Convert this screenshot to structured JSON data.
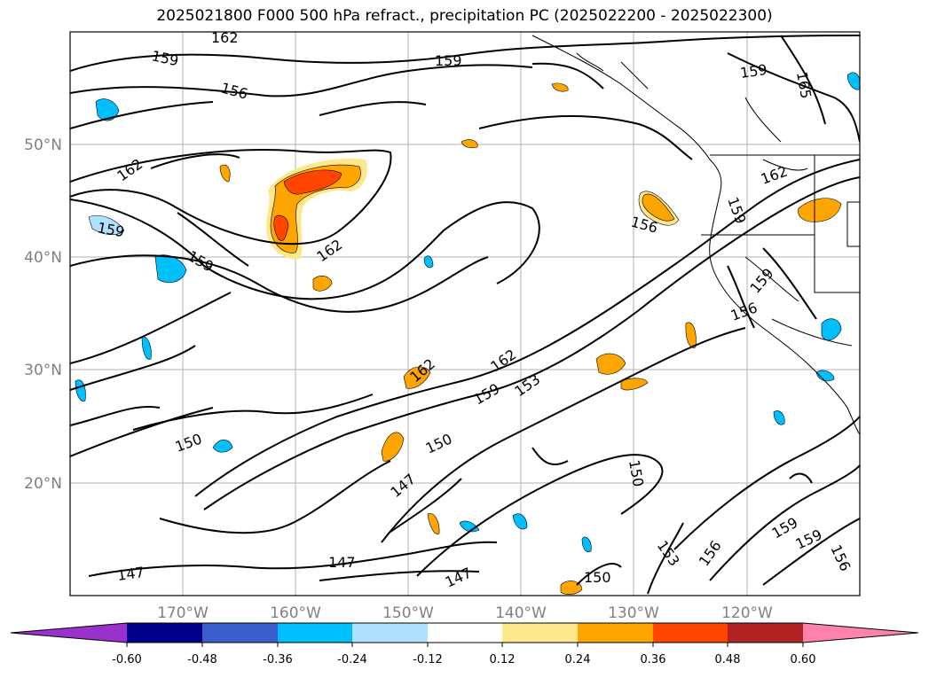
{
  "title": "2025021800 F000 500 hPa refract., precipitation PC (2025022200 - 2025022300)",
  "map": {
    "projection": "lat-lon",
    "lon_range": [
      "180°W",
      "110°W"
    ],
    "lat_range": [
      "10°N",
      "60°N"
    ],
    "grid": true
  },
  "axes": {
    "lon_ticks": [
      "170°W",
      "160°W",
      "150°W",
      "140°W",
      "130°W",
      "120°W"
    ],
    "lat_ticks": [
      "50°N",
      "40°N",
      "30°N",
      "20°N"
    ]
  },
  "contour_labels": [
    {
      "text": "162"
    },
    {
      "text": "159"
    },
    {
      "text": "159"
    },
    {
      "text": "156"
    },
    {
      "text": "159"
    },
    {
      "text": "165"
    },
    {
      "text": "162"
    },
    {
      "text": "159"
    },
    {
      "text": "159"
    },
    {
      "text": "162"
    },
    {
      "text": "156"
    },
    {
      "text": "162"
    },
    {
      "text": "159"
    },
    {
      "text": "159"
    },
    {
      "text": "156"
    },
    {
      "text": "162"
    },
    {
      "text": "162"
    },
    {
      "text": "159"
    },
    {
      "text": "153"
    },
    {
      "text": "150"
    },
    {
      "text": "150"
    },
    {
      "text": "147"
    },
    {
      "text": "150"
    },
    {
      "text": "147"
    },
    {
      "text": "147"
    },
    {
      "text": "147"
    },
    {
      "text": "150"
    },
    {
      "text": "153"
    },
    {
      "text": "156"
    },
    {
      "text": "159"
    },
    {
      "text": "159"
    },
    {
      "text": "156"
    }
  ],
  "colorbar": {
    "ticks": [
      "-0.60",
      "-0.48",
      "-0.36",
      "-0.24",
      "-0.12",
      "0.12",
      "0.24",
      "0.36",
      "0.48",
      "0.60"
    ],
    "colors": [
      "#9932cc",
      "#00008b",
      "#3a5fcd",
      "#00bfff",
      "#b0e2ff",
      "#ffffff",
      "#ffe78c",
      "#ffa500",
      "#ff4500",
      "#b22222",
      "#ff82ab"
    ],
    "extend": "both"
  }
}
